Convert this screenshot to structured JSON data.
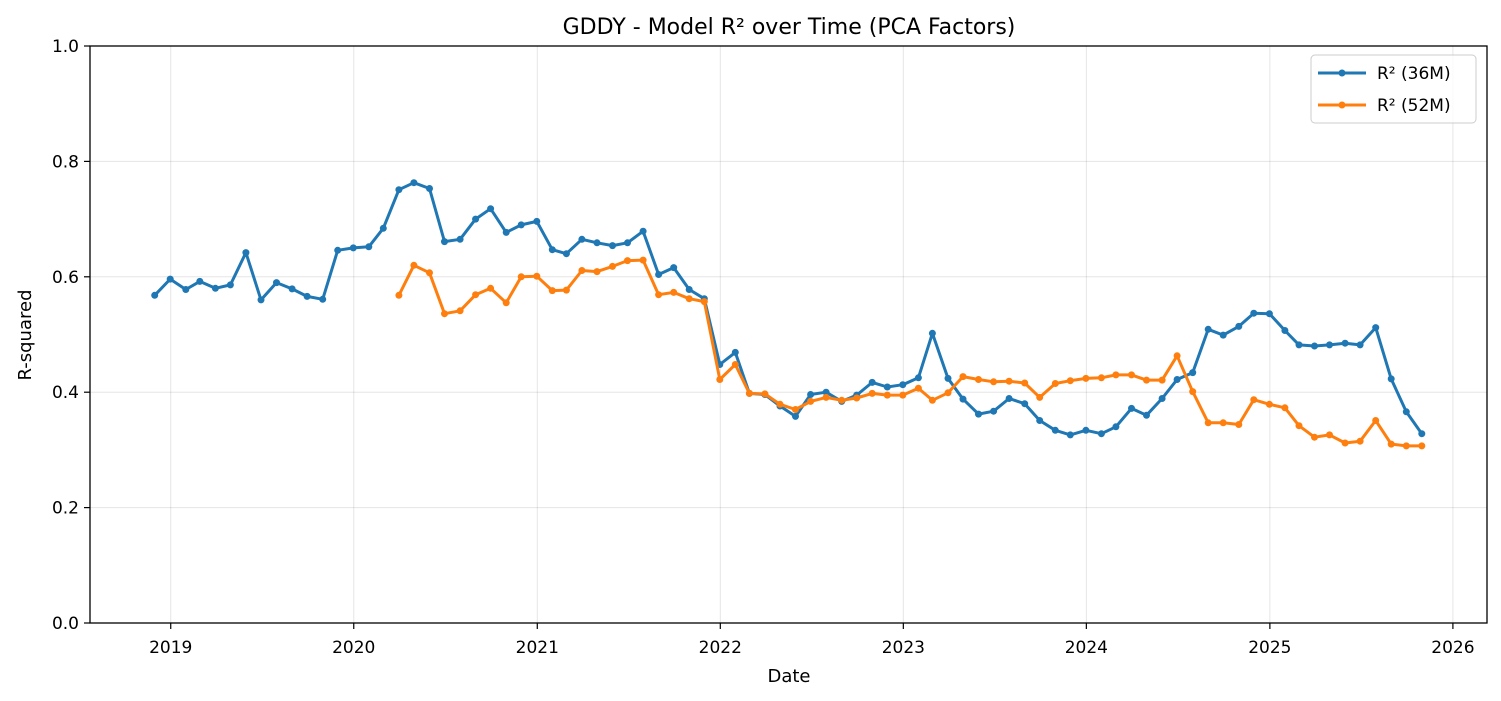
{
  "chart_data": {
    "type": "line",
    "title": "GDDY - Model R² over Time (PCA Factors)",
    "xlabel": "Date",
    "ylabel": "R-squared",
    "ylim": [
      0,
      1
    ],
    "xlim": [
      "2018-07-24",
      "2026-03-10"
    ],
    "x_ticks": [
      "2019",
      "2020",
      "2021",
      "2022",
      "2023",
      "2024",
      "2025",
      "2026"
    ],
    "y_ticks": [
      "0.0",
      "0.2",
      "0.4",
      "0.6",
      "0.8",
      "1.0"
    ],
    "grid": true,
    "legend_position": "top-right",
    "series": [
      {
        "name": "R² (36M)",
        "color": "#1f77b4",
        "points": [
          [
            "2018-11-30",
            0.568
          ],
          [
            "2018-12-31",
            0.596
          ],
          [
            "2019-01-31",
            0.578
          ],
          [
            "2019-02-28",
            0.592
          ],
          [
            "2019-03-31",
            0.58
          ],
          [
            "2019-04-30",
            0.586
          ],
          [
            "2019-05-31",
            0.642
          ],
          [
            "2019-06-30",
            0.56
          ],
          [
            "2019-07-31",
            0.59
          ],
          [
            "2019-08-31",
            0.579
          ],
          [
            "2019-09-30",
            0.566
          ],
          [
            "2019-10-31",
            0.561
          ],
          [
            "2019-11-30",
            0.646
          ],
          [
            "2019-12-31",
            0.65
          ],
          [
            "2020-01-31",
            0.652
          ],
          [
            "2020-02-29",
            0.684
          ],
          [
            "2020-03-31",
            0.751
          ],
          [
            "2020-04-30",
            0.763
          ],
          [
            "2020-05-31",
            0.753
          ],
          [
            "2020-06-30",
            0.661
          ],
          [
            "2020-07-31",
            0.665
          ],
          [
            "2020-08-31",
            0.7
          ],
          [
            "2020-09-30",
            0.718
          ],
          [
            "2020-10-31",
            0.677
          ],
          [
            "2020-11-30",
            0.69
          ],
          [
            "2020-12-31",
            0.696
          ],
          [
            "2021-01-31",
            0.647
          ],
          [
            "2021-02-28",
            0.64
          ],
          [
            "2021-03-31",
            0.665
          ],
          [
            "2021-04-30",
            0.659
          ],
          [
            "2021-05-31",
            0.654
          ],
          [
            "2021-06-30",
            0.659
          ],
          [
            "2021-07-31",
            0.679
          ],
          [
            "2021-08-31",
            0.604
          ],
          [
            "2021-09-30",
            0.616
          ],
          [
            "2021-10-31",
            0.578
          ],
          [
            "2021-11-30",
            0.562
          ],
          [
            "2021-12-31",
            0.448
          ],
          [
            "2022-01-31",
            0.469
          ],
          [
            "2022-02-28",
            0.398
          ],
          [
            "2022-03-31",
            0.396
          ],
          [
            "2022-04-30",
            0.376
          ],
          [
            "2022-05-31",
            0.358
          ],
          [
            "2022-06-30",
            0.396
          ],
          [
            "2022-07-31",
            0.4
          ],
          [
            "2022-08-31",
            0.384
          ],
          [
            "2022-09-30",
            0.395
          ],
          [
            "2022-10-31",
            0.417
          ],
          [
            "2022-11-30",
            0.409
          ],
          [
            "2022-12-31",
            0.413
          ],
          [
            "2023-01-31",
            0.425
          ],
          [
            "2023-02-28",
            0.502
          ],
          [
            "2023-03-31",
            0.424
          ],
          [
            "2023-04-30",
            0.388
          ],
          [
            "2023-05-31",
            0.362
          ],
          [
            "2023-06-30",
            0.367
          ],
          [
            "2023-07-31",
            0.389
          ],
          [
            "2023-08-31",
            0.38
          ],
          [
            "2023-09-30",
            0.351
          ],
          [
            "2023-10-31",
            0.334
          ],
          [
            "2023-11-30",
            0.326
          ],
          [
            "2023-12-31",
            0.334
          ],
          [
            "2024-01-31",
            0.328
          ],
          [
            "2024-02-29",
            0.34
          ],
          [
            "2024-03-31",
            0.372
          ],
          [
            "2024-04-30",
            0.36
          ],
          [
            "2024-05-31",
            0.389
          ],
          [
            "2024-06-30",
            0.422
          ],
          [
            "2024-07-31",
            0.434
          ],
          [
            "2024-08-31",
            0.509
          ],
          [
            "2024-09-30",
            0.499
          ],
          [
            "2024-10-31",
            0.514
          ],
          [
            "2024-11-30",
            0.537
          ],
          [
            "2024-12-31",
            0.536
          ],
          [
            "2025-01-31",
            0.507
          ],
          [
            "2025-02-28",
            0.482
          ],
          [
            "2025-03-31",
            0.48
          ],
          [
            "2025-04-30",
            0.482
          ],
          [
            "2025-05-31",
            0.485
          ],
          [
            "2025-06-30",
            0.482
          ],
          [
            "2025-07-31",
            0.512
          ],
          [
            "2025-08-31",
            0.423
          ],
          [
            "2025-09-30",
            0.366
          ],
          [
            "2025-10-31",
            0.328
          ]
        ]
      },
      {
        "name": "R² (52M)",
        "color": "#ff7f0e",
        "points": [
          [
            "2020-03-31",
            0.568
          ],
          [
            "2020-04-30",
            0.62
          ],
          [
            "2020-05-31",
            0.607
          ],
          [
            "2020-06-30",
            0.536
          ],
          [
            "2020-07-31",
            0.541
          ],
          [
            "2020-08-31",
            0.569
          ],
          [
            "2020-09-30",
            0.58
          ],
          [
            "2020-10-31",
            0.555
          ],
          [
            "2020-11-30",
            0.6
          ],
          [
            "2020-12-31",
            0.601
          ],
          [
            "2021-01-31",
            0.576
          ],
          [
            "2021-02-28",
            0.577
          ],
          [
            "2021-03-31",
            0.611
          ],
          [
            "2021-04-30",
            0.609
          ],
          [
            "2021-05-31",
            0.618
          ],
          [
            "2021-06-30",
            0.628
          ],
          [
            "2021-07-31",
            0.629
          ],
          [
            "2021-08-31",
            0.569
          ],
          [
            "2021-09-30",
            0.573
          ],
          [
            "2021-10-31",
            0.562
          ],
          [
            "2021-11-30",
            0.557
          ],
          [
            "2021-12-31",
            0.422
          ],
          [
            "2022-01-31",
            0.448
          ],
          [
            "2022-02-28",
            0.398
          ],
          [
            "2022-03-31",
            0.397
          ],
          [
            "2022-04-30",
            0.379
          ],
          [
            "2022-05-31",
            0.37
          ],
          [
            "2022-06-30",
            0.384
          ],
          [
            "2022-07-31",
            0.391
          ],
          [
            "2022-08-31",
            0.386
          ],
          [
            "2022-09-30",
            0.39
          ],
          [
            "2022-10-31",
            0.398
          ],
          [
            "2022-11-30",
            0.395
          ],
          [
            "2022-12-31",
            0.395
          ],
          [
            "2023-01-31",
            0.407
          ],
          [
            "2023-02-28",
            0.386
          ],
          [
            "2023-03-31",
            0.399
          ],
          [
            "2023-04-30",
            0.427
          ],
          [
            "2023-05-31",
            0.422
          ],
          [
            "2023-06-30",
            0.418
          ],
          [
            "2023-07-31",
            0.419
          ],
          [
            "2023-08-31",
            0.416
          ],
          [
            "2023-09-30",
            0.391
          ],
          [
            "2023-10-31",
            0.415
          ],
          [
            "2023-11-30",
            0.42
          ],
          [
            "2023-12-31",
            0.424
          ],
          [
            "2024-01-31",
            0.425
          ],
          [
            "2024-02-29",
            0.43
          ],
          [
            "2024-03-31",
            0.43
          ],
          [
            "2024-04-30",
            0.421
          ],
          [
            "2024-05-31",
            0.421
          ],
          [
            "2024-06-30",
            0.463
          ],
          [
            "2024-07-31",
            0.401
          ],
          [
            "2024-08-31",
            0.347
          ],
          [
            "2024-09-30",
            0.347
          ],
          [
            "2024-10-31",
            0.344
          ],
          [
            "2024-11-30",
            0.387
          ],
          [
            "2024-12-31",
            0.379
          ],
          [
            "2025-01-31",
            0.373
          ],
          [
            "2025-02-28",
            0.342
          ],
          [
            "2025-03-31",
            0.322
          ],
          [
            "2025-04-30",
            0.326
          ],
          [
            "2025-05-31",
            0.312
          ],
          [
            "2025-06-30",
            0.315
          ],
          [
            "2025-07-31",
            0.351
          ],
          [
            "2025-08-31",
            0.31
          ],
          [
            "2025-09-30",
            0.307
          ],
          [
            "2025-10-31",
            0.307
          ]
        ]
      }
    ]
  }
}
